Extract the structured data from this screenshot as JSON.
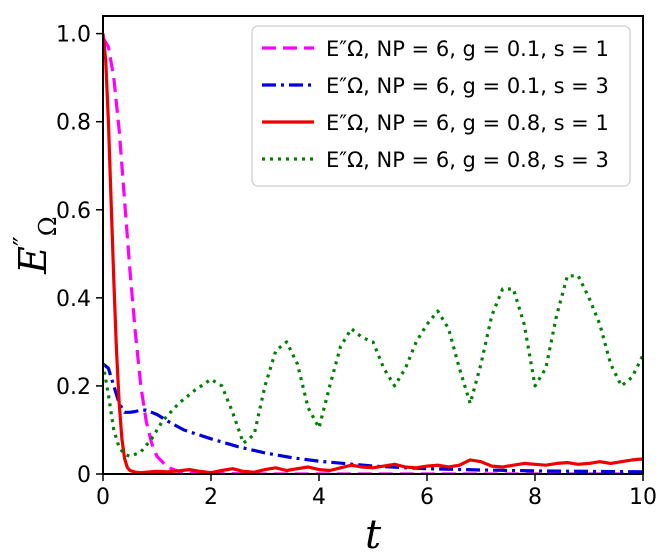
{
  "chart_data": {
    "type": "line",
    "xlabel": "t",
    "ylabel": "E″Ω",
    "xlim": [
      0,
      10
    ],
    "ylim": [
      0,
      1.04
    ],
    "xticks": [
      "0",
      "2",
      "4",
      "6",
      "8",
      "10"
    ],
    "yticks": [
      "0",
      "0.2",
      "0.4",
      "0.6",
      "0.8",
      "1.0"
    ],
    "legend_position": "top-right",
    "series": [
      {
        "name": "E″Ω, NP = 6, g = 0.1, s = 1",
        "color": "#ff00ff",
        "style": "dashed",
        "x": [
          0,
          0.1,
          0.2,
          0.3,
          0.4,
          0.5,
          0.6,
          0.7,
          0.8,
          0.9,
          1.0,
          1.2,
          1.4,
          1.6,
          2.0,
          3.0,
          5.0,
          7.0,
          10.0
        ],
        "y": [
          0.99,
          0.97,
          0.9,
          0.78,
          0.62,
          0.46,
          0.32,
          0.2,
          0.12,
          0.07,
          0.04,
          0.015,
          0.006,
          0.002,
          0.001,
          0.0,
          0.0,
          0.0,
          0.0
        ]
      },
      {
        "name": "E″Ω, NP = 6, g = 0.1, s = 3",
        "color": "#0000dd",
        "style": "dashdot",
        "x": [
          0,
          0.1,
          0.2,
          0.3,
          0.4,
          0.5,
          0.6,
          0.7,
          0.8,
          0.9,
          1.0,
          1.2,
          1.5,
          2.0,
          2.5,
          3.0,
          3.5,
          4.0,
          5.0,
          6.0,
          7.0,
          8.0,
          9.0,
          10.0
        ],
        "y": [
          0.25,
          0.24,
          0.2,
          0.16,
          0.14,
          0.14,
          0.142,
          0.145,
          0.145,
          0.14,
          0.135,
          0.12,
          0.1,
          0.08,
          0.062,
          0.048,
          0.037,
          0.029,
          0.018,
          0.012,
          0.009,
          0.007,
          0.006,
          0.005
        ]
      },
      {
        "name": "E″Ω, NP = 6, g = 0.8, s = 1",
        "color": "#ee0000",
        "style": "solid",
        "x": [
          0,
          0.05,
          0.1,
          0.15,
          0.2,
          0.25,
          0.3,
          0.35,
          0.4,
          0.45,
          0.5,
          0.6,
          0.7,
          0.8,
          1.0,
          1.2,
          1.4,
          1.6,
          1.8,
          2.0,
          2.2,
          2.4,
          2.6,
          2.8,
          3.0,
          3.2,
          3.4,
          3.6,
          3.8,
          4.0,
          4.2,
          4.4,
          4.6,
          4.8,
          5.0,
          5.2,
          5.4,
          5.6,
          5.8,
          6.0,
          6.2,
          6.4,
          6.6,
          6.8,
          7.0,
          7.2,
          7.4,
          7.6,
          7.8,
          8.0,
          8.2,
          8.4,
          8.6,
          8.8,
          9.0,
          9.2,
          9.4,
          9.6,
          9.8,
          10.0
        ],
        "y": [
          1.0,
          0.94,
          0.8,
          0.62,
          0.44,
          0.28,
          0.16,
          0.08,
          0.035,
          0.015,
          0.008,
          0.004,
          0.003,
          0.004,
          0.006,
          0.005,
          0.007,
          0.01,
          0.006,
          0.003,
          0.008,
          0.012,
          0.006,
          0.004,
          0.01,
          0.014,
          0.008,
          0.012,
          0.016,
          0.01,
          0.008,
          0.014,
          0.02,
          0.016,
          0.014,
          0.018,
          0.022,
          0.016,
          0.014,
          0.018,
          0.02,
          0.016,
          0.02,
          0.032,
          0.028,
          0.018,
          0.016,
          0.02,
          0.024,
          0.022,
          0.02,
          0.024,
          0.026,
          0.022,
          0.024,
          0.028,
          0.024,
          0.028,
          0.032,
          0.034
        ]
      },
      {
        "name": "E″Ω, NP = 6, g = 0.8, s = 3",
        "color": "#008000",
        "style": "dotted",
        "x": [
          0,
          0.1,
          0.2,
          0.3,
          0.4,
          0.5,
          0.7,
          0.9,
          1.1,
          1.4,
          1.7,
          2.0,
          2.2,
          2.4,
          2.6,
          2.8,
          3.0,
          3.2,
          3.4,
          3.6,
          3.8,
          4.0,
          4.2,
          4.4,
          4.6,
          4.8,
          5.0,
          5.2,
          5.4,
          5.6,
          5.8,
          6.0,
          6.2,
          6.4,
          6.6,
          6.8,
          7.0,
          7.2,
          7.4,
          7.6,
          7.8,
          8.0,
          8.2,
          8.4,
          8.6,
          8.8,
          9.0,
          9.2,
          9.4,
          9.6,
          9.8,
          10.0
        ],
        "y": [
          0.25,
          0.18,
          0.1,
          0.06,
          0.045,
          0.04,
          0.05,
          0.08,
          0.12,
          0.16,
          0.19,
          0.215,
          0.2,
          0.14,
          0.07,
          0.09,
          0.2,
          0.28,
          0.3,
          0.25,
          0.15,
          0.105,
          0.2,
          0.29,
          0.33,
          0.31,
          0.3,
          0.24,
          0.2,
          0.24,
          0.3,
          0.34,
          0.37,
          0.33,
          0.24,
          0.16,
          0.25,
          0.36,
          0.42,
          0.42,
          0.34,
          0.2,
          0.24,
          0.36,
          0.45,
          0.45,
          0.4,
          0.34,
          0.25,
          0.2,
          0.22,
          0.27
        ]
      }
    ]
  }
}
